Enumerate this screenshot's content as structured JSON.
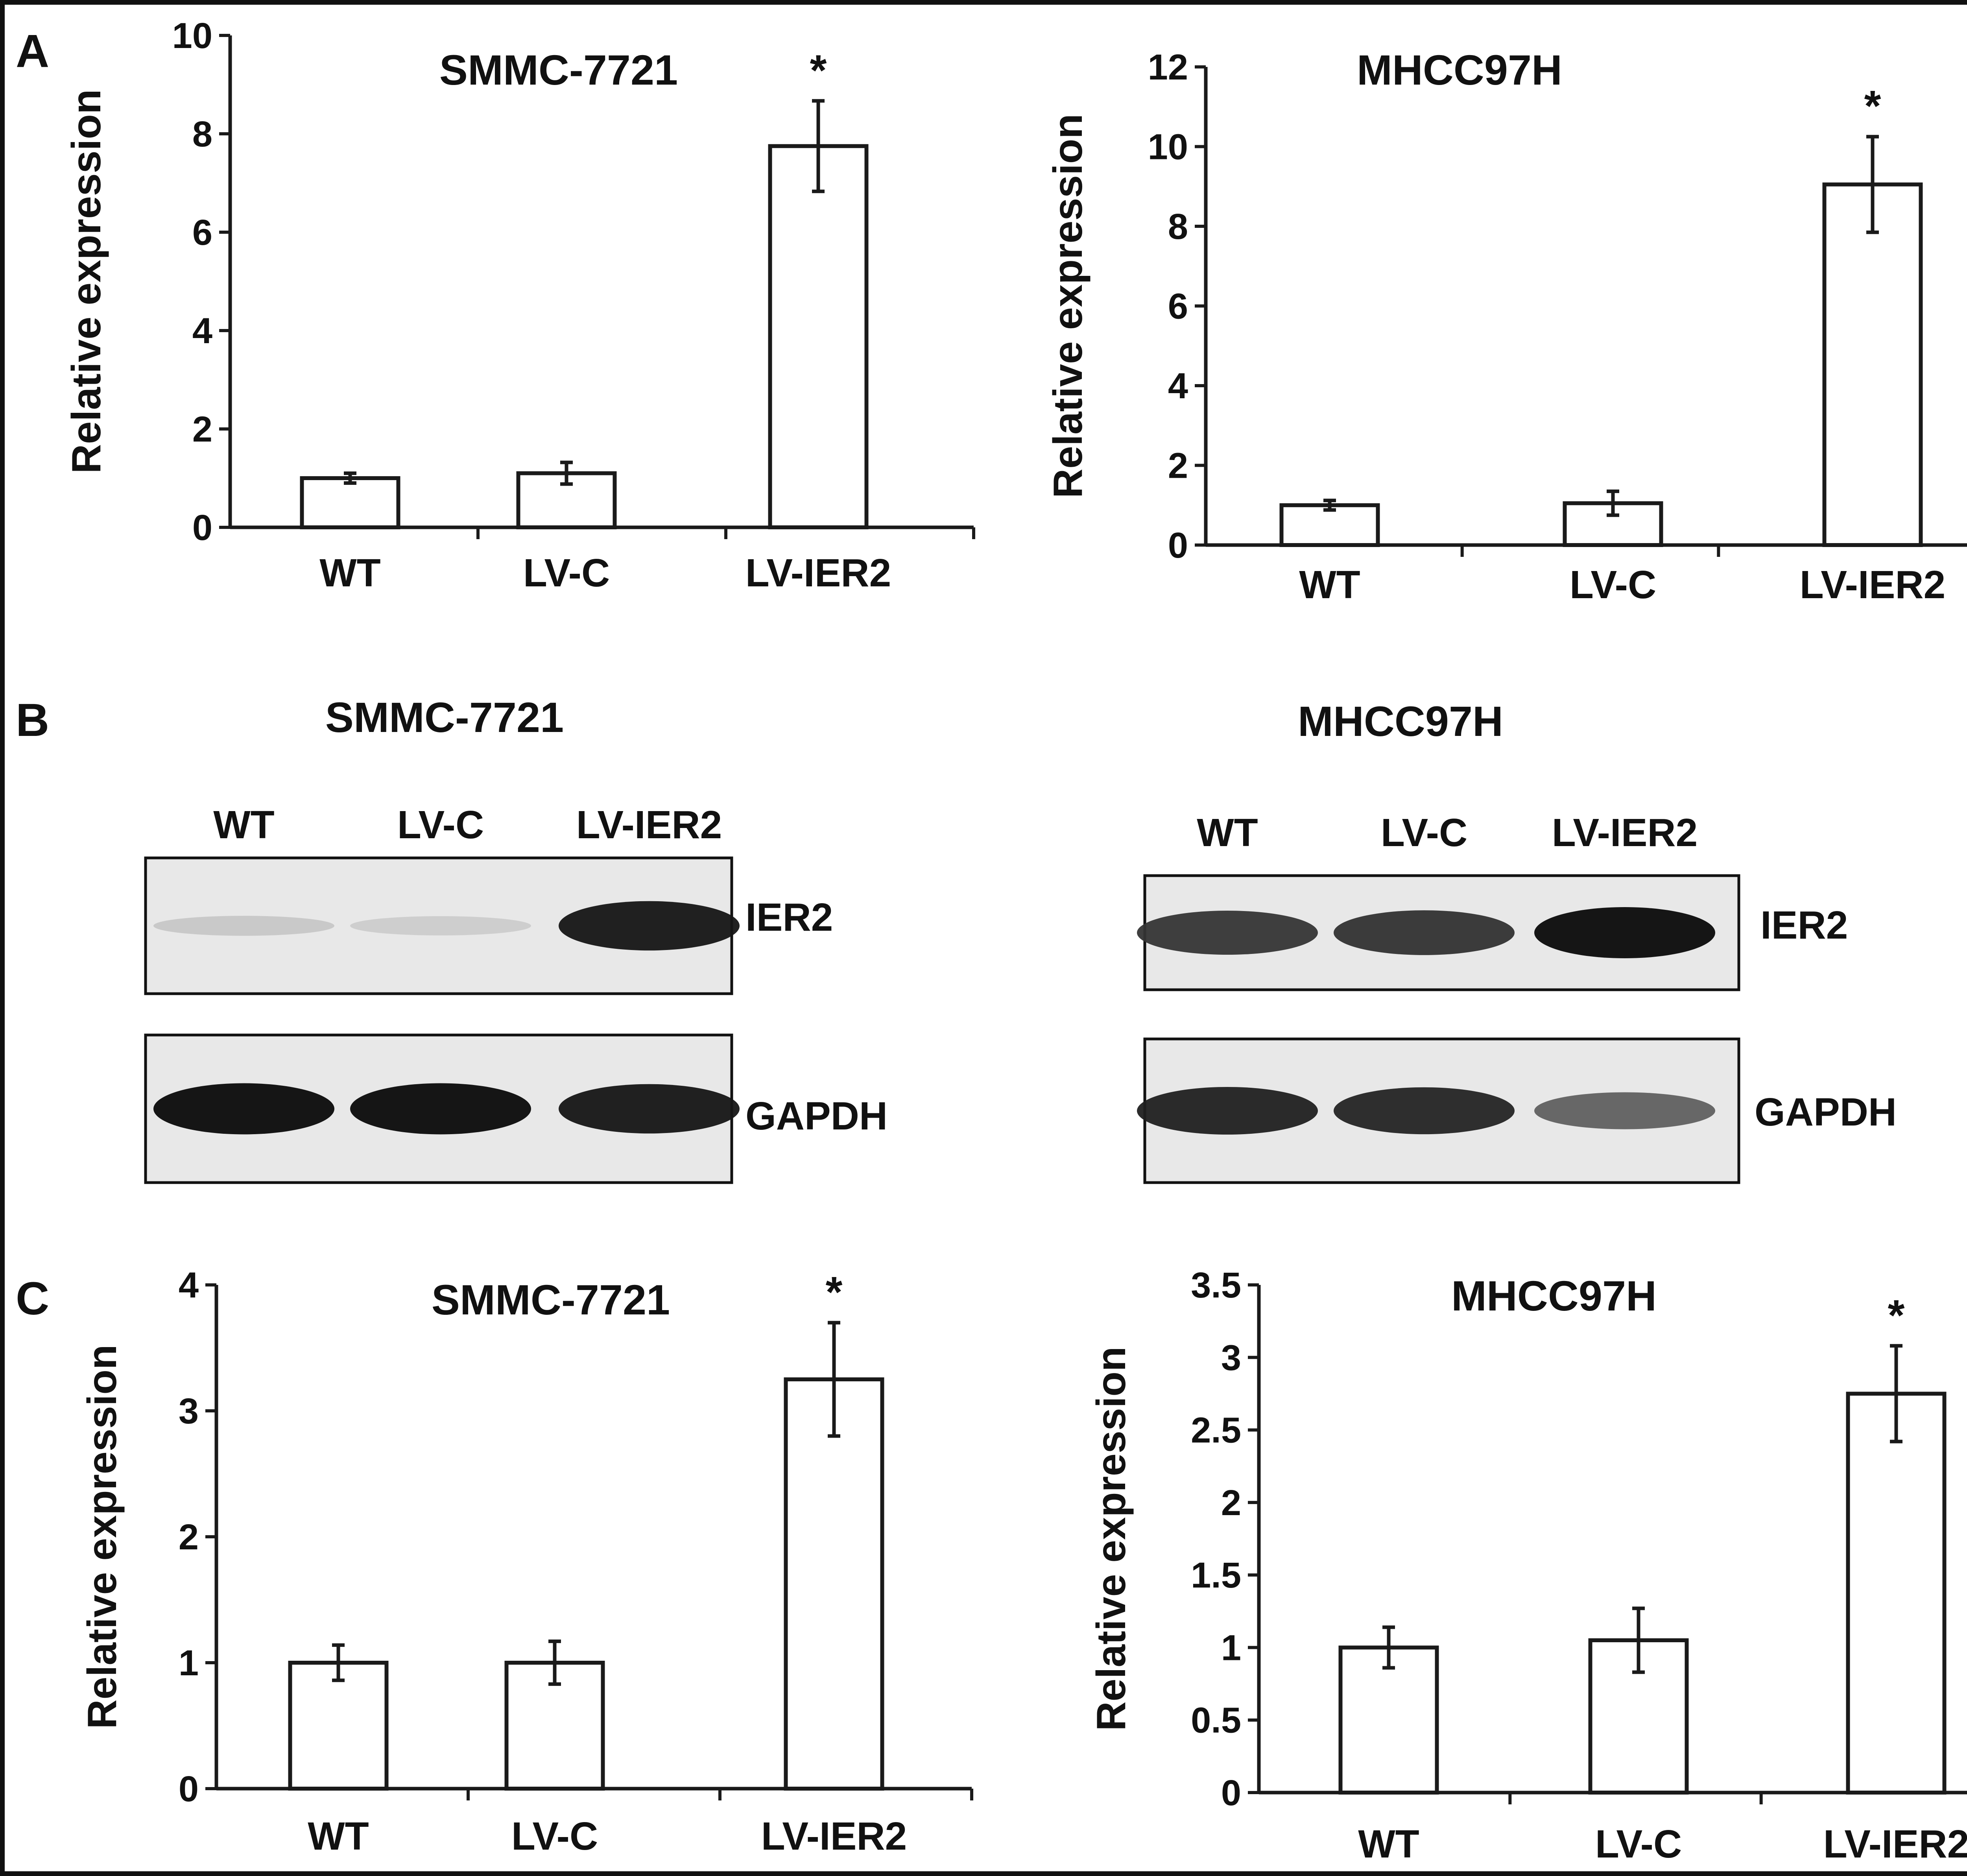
{
  "panels": {
    "A": "A",
    "B": "B",
    "C": "C"
  },
  "chart_data": [
    {
      "type": "bar",
      "panel": "A",
      "title": "SMMC-7721",
      "ylabel": "Relative expression",
      "xlabel": "",
      "categories": [
        "WT",
        "LV-C",
        "LV-IER2"
      ],
      "values": [
        1.0,
        1.1,
        7.75
      ],
      "errors": [
        0.1,
        0.22,
        0.92
      ],
      "significance": [
        "",
        "",
        "*"
      ],
      "ylim": [
        0,
        10
      ],
      "yticks": [
        0,
        2,
        4,
        6,
        8,
        10
      ],
      "ytick_labels": [
        "0",
        "2",
        "4",
        "6",
        "8",
        "10"
      ],
      "grid": false,
      "legend": "none",
      "bar_fill": "#ffffff",
      "bar_stroke": "#1a1a1a"
    },
    {
      "type": "bar",
      "panel": "A",
      "title": "MHCC97H",
      "ylabel": "Relative expression",
      "xlabel": "",
      "categories": [
        "WT",
        "LV-C",
        "LV-IER2"
      ],
      "values": [
        1.0,
        1.05,
        9.05
      ],
      "errors": [
        0.12,
        0.3,
        1.2
      ],
      "significance": [
        "",
        "",
        "*"
      ],
      "ylim": [
        0,
        12
      ],
      "yticks": [
        0,
        2,
        4,
        6,
        8,
        10,
        12
      ],
      "ytick_labels": [
        "0",
        "2",
        "4",
        "6",
        "8",
        "10",
        "12"
      ],
      "grid": false,
      "legend": "none",
      "bar_fill": "#ffffff",
      "bar_stroke": "#1a1a1a"
    },
    {
      "type": "bar",
      "panel": "C",
      "title": "SMMC-7721",
      "ylabel": "Relative expression",
      "xlabel": "",
      "categories": [
        "WT",
        "LV-C",
        "LV-IER2"
      ],
      "values": [
        1.0,
        1.0,
        3.25
      ],
      "errors": [
        0.14,
        0.17,
        0.45
      ],
      "significance": [
        "",
        "",
        "*"
      ],
      "ylim": [
        0,
        4
      ],
      "yticks": [
        0,
        1,
        2,
        3,
        4
      ],
      "ytick_labels": [
        "0",
        "1",
        "2",
        "3",
        "4"
      ],
      "grid": false,
      "legend": "none",
      "bar_fill": "#ffffff",
      "bar_stroke": "#1a1a1a"
    },
    {
      "type": "bar",
      "panel": "C",
      "title": "MHCC97H",
      "ylabel": "Relative expression",
      "xlabel": "",
      "categories": [
        "WT",
        "LV-C",
        "LV-IER2"
      ],
      "values": [
        1.0,
        1.05,
        2.75
      ],
      "errors": [
        0.14,
        0.22,
        0.33
      ],
      "significance": [
        "",
        "",
        "*"
      ],
      "ylim": [
        0,
        3.5
      ],
      "yticks": [
        0,
        0.5,
        1,
        1.5,
        2,
        2.5,
        3,
        3.5
      ],
      "ytick_labels": [
        "0",
        "0.5",
        "1",
        "1.5",
        "2",
        "2.5",
        "3",
        "3.5"
      ],
      "grid": false,
      "legend": "none",
      "bar_fill": "#ffffff",
      "bar_stroke": "#1a1a1a"
    }
  ],
  "blots": [
    {
      "title": "SMMC-7721",
      "lanes": [
        "WT",
        "LV-C",
        "LV-IER2"
      ],
      "bands": [
        {
          "label": "IER2",
          "intensity": [
            0.12,
            0.1,
            0.95
          ]
        },
        {
          "label": "GAPDH",
          "intensity": [
            1.0,
            1.0,
            0.95
          ]
        }
      ]
    },
    {
      "title": "MHCC97H",
      "lanes": [
        "WT",
        "LV-C",
        "LV-IER2"
      ],
      "bands": [
        {
          "label": "IER2",
          "intensity": [
            0.8,
            0.82,
            1.0
          ]
        },
        {
          "label": "GAPDH",
          "intensity": [
            0.9,
            0.88,
            0.6
          ]
        }
      ]
    }
  ]
}
